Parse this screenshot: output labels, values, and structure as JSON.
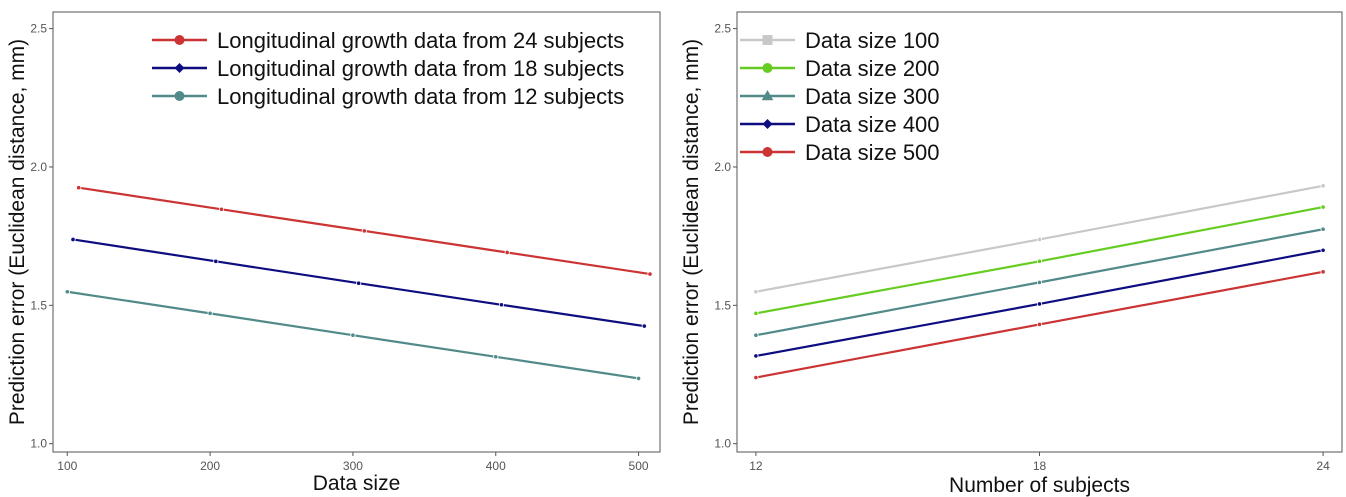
{
  "chart_data": [
    {
      "type": "line",
      "xlabel": "Data size",
      "ylabel": "Prediction error (Euclidean distance, mm)",
      "xlim": [
        90,
        515
      ],
      "ylim": [
        0.97,
        2.56
      ],
      "xticks": [
        100,
        200,
        300,
        400,
        500
      ],
      "yticks": [
        1.0,
        1.5,
        2.0,
        2.5
      ],
      "ytick_labels": [
        "1.0",
        "1.5",
        "2.0",
        "2.5"
      ],
      "grid": false,
      "legend": "top-right",
      "series": [
        {
          "name": "Longitudinal growth data from 24 subjects",
          "color": "#cc3333",
          "marker": "circle",
          "x": [
            108,
            208,
            308,
            408,
            508
          ],
          "y": [
            1.925,
            1.847,
            1.769,
            1.691,
            1.613
          ]
        },
        {
          "name": "Longitudinal growth data from 18 subjects",
          "color": "#0d0d80",
          "marker": "diamond",
          "x": [
            104,
            204,
            304,
            404,
            504
          ],
          "y": [
            1.738,
            1.659,
            1.58,
            1.502,
            1.425
          ]
        },
        {
          "name": "Longitudinal growth data from 12 subjects",
          "color": "#528a8a",
          "marker": "circle",
          "x": [
            100,
            200,
            300,
            400,
            500
          ],
          "y": [
            1.549,
            1.471,
            1.392,
            1.314,
            1.236
          ]
        }
      ]
    },
    {
      "type": "line",
      "xlabel": "Number of subjects",
      "ylabel": "Prediction error (Euclidean distance, mm)",
      "xlim": [
        11.6,
        24.4
      ],
      "ylim": [
        0.97,
        2.56
      ],
      "xticks": [
        12,
        18,
        24
      ],
      "yticks": [
        1.0,
        1.5,
        2.0,
        2.5
      ],
      "ytick_labels": [
        "1.0",
        "1.5",
        "2.0",
        "2.5"
      ],
      "grid": false,
      "legend": "top-left",
      "series": [
        {
          "name": "Data size 100",
          "color": "#c8c8c8",
          "marker": "square",
          "x": [
            12,
            18,
            24
          ],
          "y": [
            1.549,
            1.738,
            1.932
          ]
        },
        {
          "name": "Data size 200",
          "color": "#66cc22",
          "marker": "circle",
          "x": [
            12,
            18,
            24
          ],
          "y": [
            1.471,
            1.659,
            1.855
          ]
        },
        {
          "name": "Data size 300",
          "color": "#528a8a",
          "marker": "triangle",
          "x": [
            12,
            18,
            24
          ],
          "y": [
            1.392,
            1.583,
            1.775
          ]
        },
        {
          "name": "Data size 400",
          "color": "#0d0d80",
          "marker": "diamond",
          "x": [
            12,
            18,
            24
          ],
          "y": [
            1.317,
            1.505,
            1.699
          ]
        },
        {
          "name": "Data size 500",
          "color": "#cc3333",
          "marker": "circle",
          "x": [
            12,
            18,
            24
          ],
          "y": [
            1.239,
            1.431,
            1.621
          ]
        }
      ]
    }
  ]
}
